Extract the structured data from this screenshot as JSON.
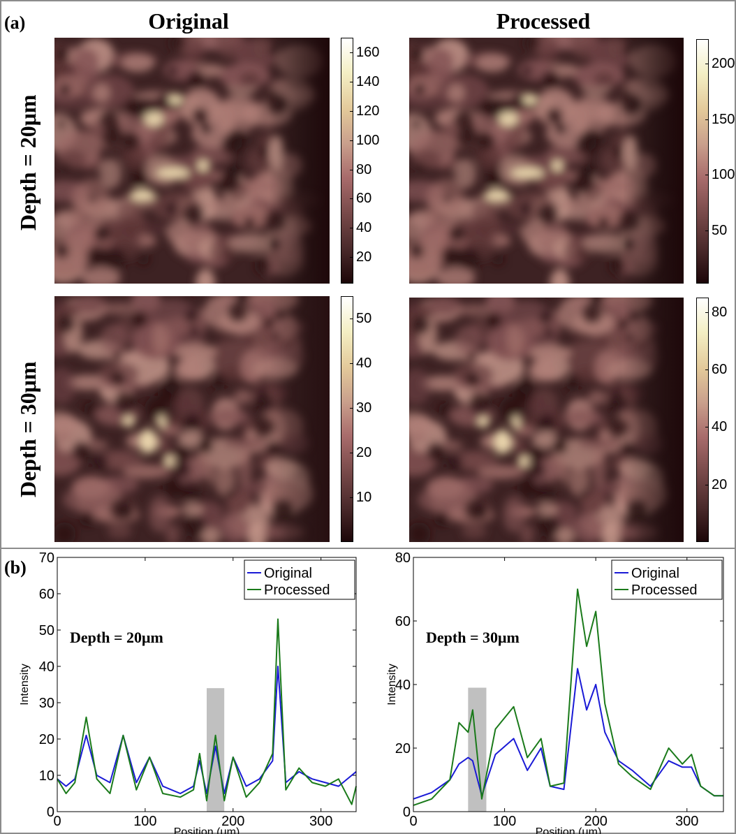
{
  "figure": {
    "panel_a_label": "(a)",
    "panel_b_label": "(b)",
    "columns": [
      "Original",
      "Processed"
    ],
    "rows": [
      "Depth = 20μm",
      "Depth = 30μm"
    ],
    "colormap": [
      "#1c0608",
      "#4a2a2b",
      "#7a4b4b",
      "#a86b6b",
      "#c99f8c",
      "#e3c99a",
      "#f4efc4",
      "#ffffff"
    ]
  },
  "images": [
    {
      "row": 0,
      "col": 0,
      "description_id": "depth20-original",
      "colorbar_ticks": [
        20,
        40,
        60,
        80,
        100,
        120,
        140,
        160
      ],
      "colorbar_range": [
        2,
        170
      ]
    },
    {
      "row": 0,
      "col": 1,
      "description_id": "depth20-processed",
      "colorbar_ticks": [
        50,
        100,
        150,
        200
      ],
      "colorbar_range": [
        2,
        222
      ]
    },
    {
      "row": 1,
      "col": 0,
      "description_id": "depth30-original",
      "colorbar_ticks": [
        10,
        20,
        30,
        40,
        50
      ],
      "colorbar_range": [
        0,
        55
      ]
    },
    {
      "row": 1,
      "col": 1,
      "description_id": "depth30-processed",
      "colorbar_ticks": [
        20,
        40,
        60,
        80
      ],
      "colorbar_range": [
        0,
        85
      ]
    }
  ],
  "chart_data": [
    {
      "type": "line",
      "annotation": "Depth = 20μm",
      "xlabel": "Position (μm)",
      "ylabel": "Intensity",
      "xlim": [
        0,
        340
      ],
      "ylim": [
        0,
        70
      ],
      "xticks": [
        0,
        100,
        200,
        300
      ],
      "yticks": [
        0,
        10,
        20,
        30,
        40,
        50,
        60,
        70
      ],
      "legend": "top-right",
      "highlight": {
        "x": [
          170,
          190
        ],
        "y": [
          0,
          34
        ],
        "color": "#c0c0c0"
      },
      "x": [
        0,
        10,
        20,
        33,
        45,
        60,
        75,
        90,
        105,
        120,
        140,
        155,
        162,
        170,
        180,
        190,
        200,
        215,
        230,
        245,
        251,
        260,
        275,
        290,
        305,
        320,
        335,
        340
      ],
      "series": [
        {
          "name": "Original",
          "color": "#1a1ad6",
          "values": [
            9,
            7,
            9,
            21,
            10,
            8,
            21,
            8,
            15,
            7,
            5,
            7,
            14,
            5,
            18,
            5,
            15,
            7,
            9,
            14,
            40,
            8,
            11,
            9,
            8,
            7,
            10,
            11
          ]
        },
        {
          "name": "Processed",
          "color": "#1a7a1a",
          "values": [
            9,
            5,
            8,
            26,
            9,
            5,
            21,
            6,
            15,
            5,
            4,
            6,
            16,
            3,
            21,
            3,
            15,
            4,
            8,
            16,
            53,
            6,
            12,
            8,
            7,
            9,
            2,
            7
          ]
        }
      ]
    },
    {
      "type": "line",
      "annotation": "Depth = 30μm",
      "xlabel": "Position (μm)",
      "ylabel": "Intensity",
      "xlim": [
        0,
        340
      ],
      "ylim": [
        0,
        80
      ],
      "xticks": [
        0,
        100,
        200,
        300
      ],
      "yticks": [
        0,
        20,
        40,
        60,
        80
      ],
      "legend": "top-right",
      "highlight": {
        "x": [
          60,
          80
        ],
        "y": [
          0,
          39
        ],
        "color": "#c0c0c0"
      },
      "x": [
        0,
        20,
        40,
        50,
        60,
        65,
        75,
        90,
        110,
        125,
        140,
        150,
        165,
        180,
        190,
        200,
        210,
        225,
        240,
        260,
        280,
        295,
        305,
        315,
        330,
        340
      ],
      "series": [
        {
          "name": "Original",
          "color": "#1a1ad6",
          "values": [
            4,
            6,
            10,
            15,
            17,
            16,
            5,
            18,
            23,
            13,
            20,
            8,
            7,
            45,
            32,
            40,
            25,
            16,
            13,
            8,
            16,
            14,
            14,
            8,
            5,
            5
          ]
        },
        {
          "name": "Processed",
          "color": "#1a7a1a",
          "values": [
            2,
            4,
            10,
            28,
            25,
            32,
            4,
            26,
            33,
            17,
            23,
            8,
            9,
            70,
            52,
            63,
            34,
            15,
            11,
            7,
            20,
            15,
            18,
            8,
            5,
            5
          ]
        }
      ]
    }
  ]
}
